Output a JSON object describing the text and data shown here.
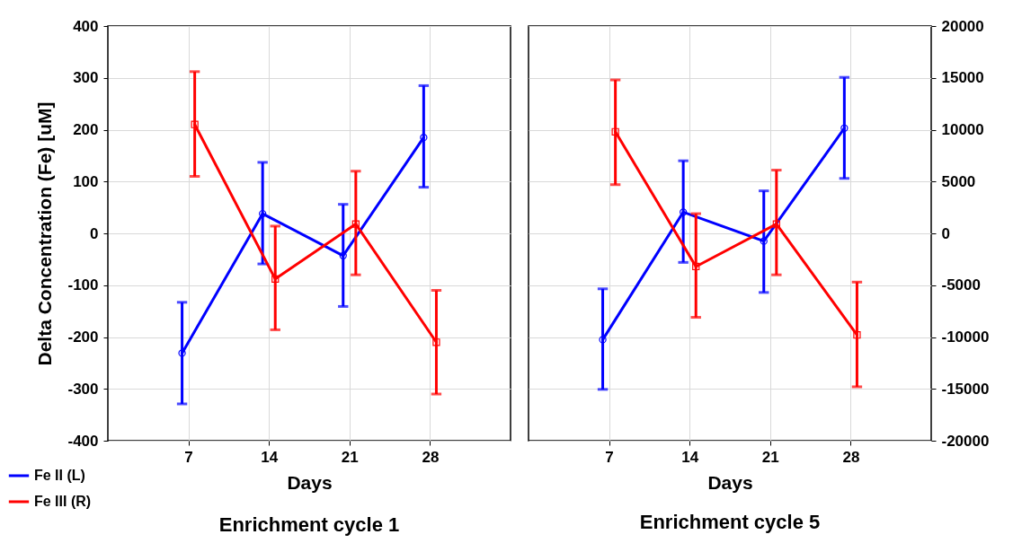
{
  "chart_data": [
    {
      "type": "line",
      "title": "Enrichment cycle 1",
      "xlabel": "Days",
      "ylabel": "Delta Concentration (Fe) [uM]",
      "xlim": [
        0,
        35
      ],
      "xticks": [
        7,
        14,
        21,
        28
      ],
      "ylim": [
        -400,
        400
      ],
      "yticks": [
        -400,
        -300,
        -200,
        -100,
        0,
        100,
        200,
        300,
        400
      ],
      "y2lim": [
        -20000,
        20000
      ],
      "grid": true,
      "legend": "bottom left",
      "series": [
        {
          "name": "Fe II (L)",
          "color": "#0000ff",
          "marker": "circle",
          "x": [
            6.45,
            13.45,
            20.45,
            27.45
          ],
          "values": [
            -231,
            38,
            -43,
            185
          ],
          "errors": [
            [
              -329,
              -133
            ],
            [
              -59,
              137
            ],
            [
              -141,
              56
            ],
            [
              89,
              285
            ]
          ]
        },
        {
          "name": "Fe III (R)",
          "color": "#ff0000",
          "marker": "square",
          "axis": "y2",
          "x": [
            7.55,
            14.55,
            21.55,
            28.55
          ],
          "values": [
            10500,
            -4400,
            900,
            -10500
          ],
          "errors": [
            [
              5500,
              15600
            ],
            [
              -9300,
              700
            ],
            [
              -4000,
              6000
            ],
            [
              -15500,
              -5500
            ]
          ]
        }
      ]
    },
    {
      "type": "line",
      "title": "Enrichment cycle 5",
      "xlabel": "Days",
      "xlim": [
        0,
        35
      ],
      "xticks": [
        7,
        14,
        21,
        28
      ],
      "ylim": [
        -400,
        400
      ],
      "y2lim": [
        -20000,
        20000
      ],
      "y2ticks": [
        -20000,
        -15000,
        -10000,
        -5000,
        0,
        5000,
        10000,
        15000,
        20000
      ],
      "grid": true,
      "series": [
        {
          "color": "#0000ff",
          "marker": "circle",
          "x": [
            6.45,
            13.45,
            20.45,
            27.45
          ],
          "values": [
            -205,
            41,
            -15,
            203
          ],
          "errors": [
            [
              -301,
              -107
            ],
            [
              -56,
              140
            ],
            [
              -114,
              82
            ],
            [
              106,
              301
            ]
          ]
        },
        {
          "color": "#ff0000",
          "marker": "square",
          "axis": "y2",
          "x": [
            7.55,
            14.55,
            21.55,
            28.55
          ],
          "values": [
            9800,
            -3200,
            900,
            -9800
          ],
          "errors": [
            [
              4700,
              14800
            ],
            [
              -8100,
              1900
            ],
            [
              -4000,
              6100
            ],
            [
              -14800,
              -4700
            ]
          ]
        }
      ]
    }
  ]
}
